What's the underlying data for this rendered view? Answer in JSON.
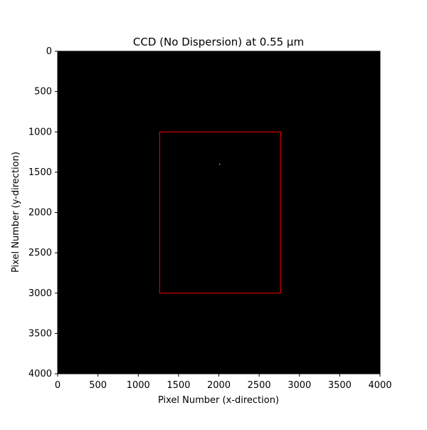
{
  "chart_data": {
    "type": "heatmap",
    "title": "CCD (No Dispersion) at 0.55 µm",
    "xlabel": "Pixel Number (x-direction)",
    "ylabel": "Pixel Number (y-direction)",
    "xlim": [
      0,
      4000
    ],
    "ylim": [
      4000,
      0
    ],
    "y_axis_inverted": true,
    "x_ticks": [
      0,
      500,
      1000,
      1500,
      2000,
      2500,
      3000,
      3500,
      4000
    ],
    "y_ticks": [
      0,
      500,
      1000,
      1500,
      2000,
      2500,
      3000,
      3500,
      4000
    ],
    "x_tick_labels": [
      "0",
      "500",
      "1000",
      "1500",
      "2000",
      "2500",
      "3000",
      "3500",
      "4000"
    ],
    "y_tick_labels": [
      "0",
      "500",
      "1000",
      "1500",
      "2000",
      "2500",
      "3000",
      "3500",
      "4000"
    ],
    "background_color": "#000000",
    "grid": false,
    "annotations": [
      {
        "type": "rectangle",
        "x_range": [
          1265,
          2765
        ],
        "y_range": [
          1000,
          3000
        ],
        "color": "#ff0000"
      },
      {
        "type": "point",
        "x": 2010,
        "y": 1400,
        "color": "#ffffff"
      }
    ]
  }
}
